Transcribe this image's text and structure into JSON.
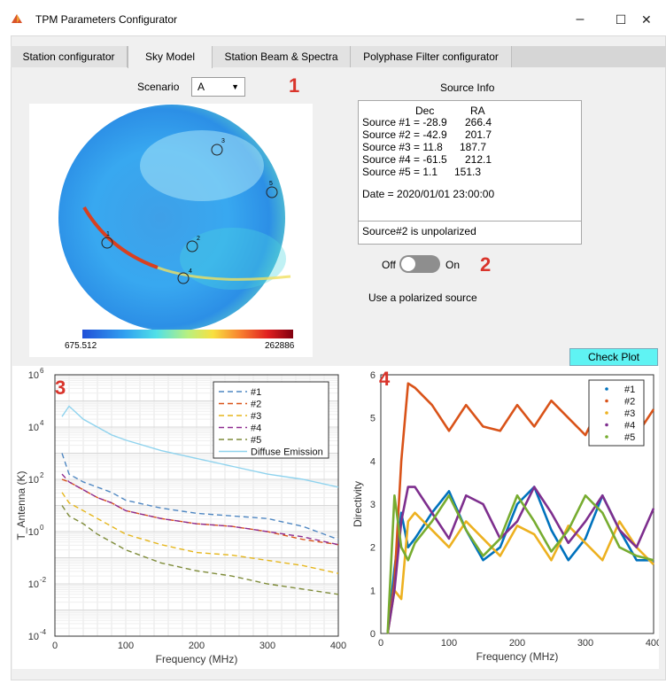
{
  "window": {
    "title": "TPM Parameters Configurator",
    "minimize_glyph": "–",
    "maximize_glyph": "☐",
    "close_glyph": "✕"
  },
  "tabs": [
    {
      "label": "Station configurator",
      "active": false
    },
    {
      "label": "Sky Model",
      "active": true
    },
    {
      "label": "Station Beam & Spectra",
      "active": false
    },
    {
      "label": "Polyphase Filter configurator",
      "active": false
    }
  ],
  "scenario": {
    "label": "Scenario",
    "value": "A"
  },
  "annotations": [
    "1",
    "2",
    "3",
    "4"
  ],
  "sky_map": {
    "colorbar_min": "675.512",
    "colorbar_max": "262886",
    "source_marks": [
      "1",
      "2",
      "3",
      "4",
      "5"
    ]
  },
  "source_info": {
    "heading": "Source Info",
    "col_dec": "Dec",
    "col_ra": "RA",
    "rows": [
      {
        "label": "Source #1 = -28.9",
        "ra": "266.4"
      },
      {
        "label": "Source #2 = -42.9",
        "ra": "201.7"
      },
      {
        "label": "Source #3 = 11.8",
        "ra": "187.7"
      },
      {
        "label": "Source #4 = -61.5",
        "ra": "212.1"
      },
      {
        "label": "Source #5 = 1.1",
        "ra": "151.3"
      }
    ],
    "date": "Date = 2020/01/01 23:00:00",
    "polarization_status": "Source#2 is unpolarized"
  },
  "polarized_toggle": {
    "off_label": "Off",
    "on_label": "On",
    "state": "off",
    "description": "Use a polarized source"
  },
  "check_plot_label": "Check Plot",
  "colors": {
    "accent_button": "#5ff3f3",
    "annotation": "#d9342b"
  },
  "chart_data": [
    {
      "type": "line",
      "ylabel": "T_Antenna (K)",
      "xlabel": "Frequency (MHz)",
      "xlim": [
        0,
        400
      ],
      "ylim_log10": [
        -4,
        6
      ],
      "yscale": "log",
      "xticks": [
        "0",
        "100",
        "200",
        "300",
        "400"
      ],
      "yticks": [
        "10-4",
        "10-2",
        "100",
        "102",
        "104",
        "106"
      ],
      "legend_position": "top-right",
      "grid": true,
      "x": [
        10,
        20,
        40,
        60,
        80,
        100,
        150,
        200,
        250,
        300,
        350,
        400
      ],
      "series": [
        {
          "name": "#1",
          "color": "#4f87c2",
          "dash": true,
          "log10_values": [
            3.0,
            2.2,
            1.9,
            1.7,
            1.5,
            1.2,
            0.9,
            0.7,
            0.6,
            0.5,
            0.2,
            -0.3
          ]
        },
        {
          "name": "#2",
          "color": "#d95319",
          "dash": true,
          "log10_values": [
            2.0,
            1.9,
            1.6,
            1.3,
            1.1,
            0.8,
            0.5,
            0.3,
            0.2,
            0.0,
            -0.3,
            -0.5
          ]
        },
        {
          "name": "#3",
          "color": "#e5b61c",
          "dash": true,
          "log10_values": [
            1.5,
            1.1,
            0.8,
            0.5,
            0.2,
            -0.1,
            -0.5,
            -0.8,
            -0.9,
            -1.1,
            -1.3,
            -1.6
          ]
        },
        {
          "name": "#4",
          "color": "#8e2c8f",
          "dash": true,
          "log10_values": [
            2.2,
            1.9,
            1.6,
            1.3,
            1.1,
            0.8,
            0.5,
            0.3,
            0.2,
            0.0,
            -0.2,
            -0.5
          ]
        },
        {
          "name": "#5",
          "color": "#7f8c3a",
          "dash": true,
          "log10_values": [
            1.0,
            0.6,
            0.3,
            -0.1,
            -0.4,
            -0.7,
            -1.2,
            -1.5,
            -1.7,
            -2.0,
            -2.2,
            -2.4
          ]
        },
        {
          "name": "Diffuse Emission",
          "color": "#8fd3ee",
          "dash": false,
          "log10_values": [
            4.4,
            4.8,
            4.3,
            4.0,
            3.7,
            3.5,
            3.1,
            2.8,
            2.5,
            2.2,
            2.0,
            1.7
          ]
        }
      ]
    },
    {
      "type": "line",
      "ylabel": "Directivity",
      "xlabel": "Frequency (MHz)",
      "xlim": [
        0,
        400
      ],
      "ylim": [
        0,
        6
      ],
      "xticks": [
        "0",
        "100",
        "200",
        "300",
        "400"
      ],
      "yticks": [
        "0",
        "1",
        "2",
        "3",
        "4",
        "5",
        "6"
      ],
      "legend_position": "top-right",
      "grid": false,
      "x": [
        10,
        20,
        30,
        40,
        50,
        75,
        100,
        125,
        150,
        175,
        200,
        225,
        250,
        275,
        300,
        325,
        350,
        375,
        400
      ],
      "series": [
        {
          "name": "#1",
          "color": "#0072bd",
          "values": [
            0.0,
            1.5,
            2.8,
            2.0,
            2.2,
            2.8,
            3.3,
            2.4,
            1.7,
            2.0,
            3.0,
            3.4,
            2.4,
            1.7,
            2.2,
            3.2,
            2.4,
            1.7,
            1.7
          ]
        },
        {
          "name": "#2",
          "color": "#d95319",
          "values": [
            0.0,
            1.2,
            4.0,
            5.8,
            5.7,
            5.3,
            4.7,
            5.3,
            4.8,
            4.7,
            5.3,
            4.8,
            5.4,
            5.0,
            4.6,
            5.4,
            5.0,
            4.6,
            5.2
          ]
        },
        {
          "name": "#3",
          "color": "#edb120",
          "values": [
            0.0,
            1.0,
            0.8,
            2.6,
            2.8,
            2.4,
            2.0,
            2.6,
            2.2,
            1.8,
            2.5,
            2.3,
            1.7,
            2.5,
            2.1,
            1.7,
            2.6,
            2.0,
            1.6
          ]
        },
        {
          "name": "#4",
          "color": "#7e2f8e",
          "values": [
            0.0,
            1.0,
            2.6,
            3.4,
            3.4,
            2.8,
            2.2,
            3.2,
            3.0,
            2.2,
            2.6,
            3.4,
            2.8,
            2.1,
            2.6,
            3.2,
            2.4,
            2.0,
            2.9
          ]
        },
        {
          "name": "#5",
          "color": "#77ac30",
          "values": [
            0.0,
            3.2,
            2.0,
            1.7,
            2.1,
            2.6,
            3.2,
            2.4,
            1.8,
            2.2,
            3.2,
            2.6,
            1.9,
            2.4,
            3.2,
            2.8,
            2.0,
            1.8,
            1.7
          ]
        }
      ]
    }
  ]
}
